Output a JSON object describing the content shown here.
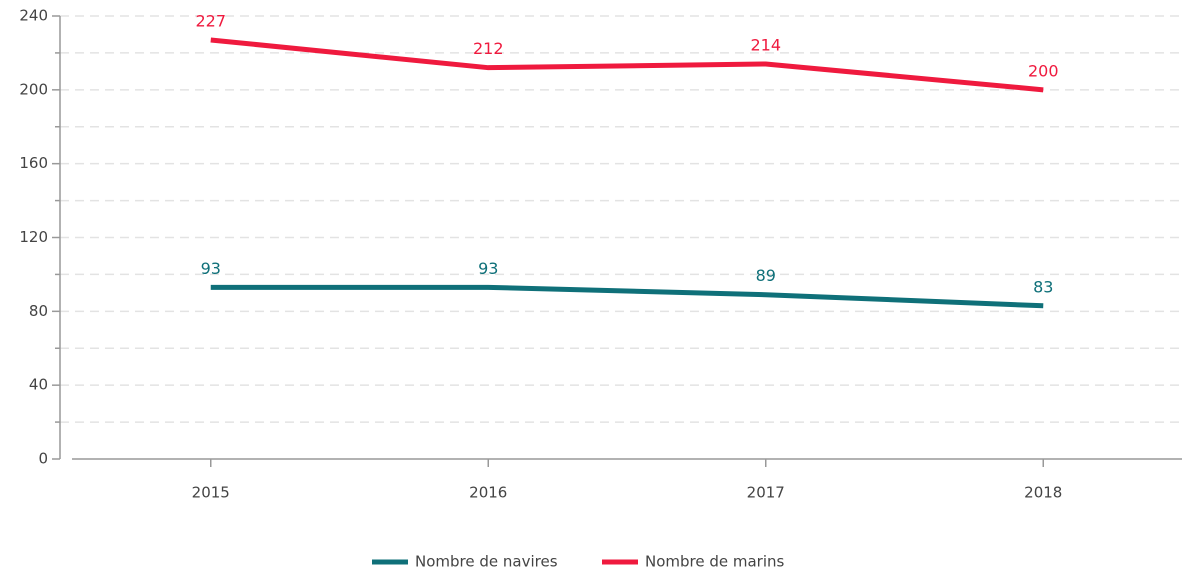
{
  "chart_data": {
    "type": "line",
    "categories": [
      "2015",
      "2016",
      "2017",
      "2018"
    ],
    "series": [
      {
        "name": "Nombre de navires",
        "color": "#0f7079",
        "values": [
          93,
          93,
          89,
          83
        ]
      },
      {
        "name": "Nombre de marins",
        "color": "#ef1a3e",
        "values": [
          227,
          212,
          214,
          200
        ]
      }
    ],
    "ylim": [
      0,
      240
    ],
    "yticks": [
      0,
      40,
      80,
      120,
      160,
      200,
      240
    ],
    "minor_yticks": [
      20,
      60,
      100,
      140,
      180,
      220
    ],
    "grid": true,
    "legend": "bottom"
  }
}
